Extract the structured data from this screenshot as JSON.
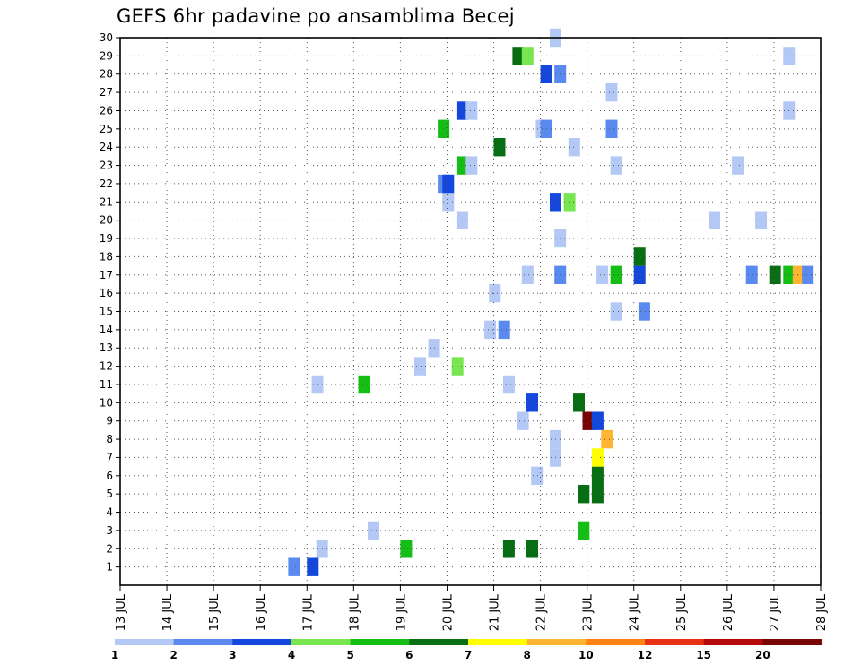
{
  "chart_data": {
    "type": "heatmap",
    "title": "GEFS 6hr padavine po ansamblima Becej",
    "x_tick_labels": [
      "13 JUL",
      "14 JUL",
      "15 JUL",
      "16 JUL",
      "17 JUL",
      "18 JUL",
      "19 JUL",
      "20 JUL",
      "21 JUL",
      "22 JUL",
      "23 JUL",
      "24 JUL",
      "25 JUL",
      "26 JUL",
      "27 JUL",
      "28 JUL"
    ],
    "x_range_days": [
      0,
      15
    ],
    "y_tick_labels": [
      "1",
      "2",
      "3",
      "4",
      "5",
      "6",
      "7",
      "8",
      "9",
      "10",
      "11",
      "12",
      "13",
      "14",
      "15",
      "16",
      "17",
      "18",
      "19",
      "20",
      "21",
      "22",
      "23",
      "24",
      "25",
      "26",
      "27",
      "28",
      "29",
      "30"
    ],
    "y_range": [
      0,
      30
    ],
    "grid": true,
    "colorbar": {
      "labels": [
        "1",
        "2",
        "3",
        "4",
        "5",
        "6",
        "7",
        "8",
        "10",
        "12",
        "15",
        "20"
      ],
      "colors": [
        "#b4c8f6",
        "#5a8af0",
        "#1448dc",
        "#78e650",
        "#14be14",
        "#086e14",
        "#ffff00",
        "#ffb432",
        "#ff8214",
        "#e63214",
        "#b40a0a",
        "#780505"
      ]
    },
    "colors": {
      "c1": "#b4c8f6",
      "c2": "#5a8af0",
      "c3": "#1448dc",
      "c4": "#78e650",
      "c5": "#14be14",
      "c6": "#086e14",
      "c7": "#ffff00",
      "c8": "#ffb432",
      "c9": "#ff8214",
      "c10": "#e63214",
      "c11": "#b40a0a",
      "c12": "#780505"
    },
    "cells": [
      [
        4,
        1,
        1
      ],
      [
        4,
        1,
        2
      ],
      [
        4,
        0,
        0
      ],
      [
        4,
        0,
        1
      ],
      [
        5,
        0,
        0
      ],
      [
        5,
        0,
        1
      ],
      [
        6,
        0,
        2
      ],
      [
        6,
        1,
        4
      ],
      [
        7,
        1,
        4
      ],
      [
        7,
        1,
        5
      ],
      [
        7,
        1,
        6
      ],
      [
        7,
        0,
        6
      ],
      [
        7,
        0,
        7
      ],
      [
        7,
        1,
        10
      ],
      [
        7,
        1,
        13
      ],
      [
        7,
        1,
        16
      ],
      [
        12,
        3,
        1
      ],
      [
        12,
        3,
        2
      ],
      [
        12,
        3,
        3
      ],
      [
        9,
        3,
        3
      ],
      [
        8,
        2,
        5
      ],
      [
        16,
        4,
        1
      ],
      [
        16,
        4,
        3
      ],
      [
        16,
        4,
        5
      ],
      [
        16,
        5,
        4
      ],
      [
        7,
        6,
        4
      ],
      [
        7,
        6,
        5
      ],
      [
        8,
        8,
        11
      ],
      [
        9,
        1,
        2
      ],
      [
        9,
        1,
        3
      ],
      [
        9,
        1,
        4
      ],
      [
        24,
        5,
        4
      ],
      [
        24,
        5,
        5
      ],
      [
        23,
        6,
        4
      ],
      [
        23,
        6,
        5
      ],
      [
        23,
        3,
        1
      ],
      [
        23,
        3,
        3
      ],
      [
        14,
        4,
        6
      ],
      [
        19,
        2,
        1
      ],
      [
        20,
        2,
        4
      ],
      [
        21,
        3,
        4
      ],
      [
        14,
        3,
        5
      ],
      [
        14,
        1,
        7
      ],
      [
        20,
        2,
        3
      ],
      [
        12,
        11,
        1
      ],
      [
        24,
        11,
        1
      ],
      [
        25,
        3,
        2
      ],
      [
        25,
        4,
        6
      ],
      [
        27,
        11,
        3
      ],
      [
        29,
        12,
        3
      ],
      [
        29,
        12,
        5
      ],
      [
        19,
        12,
        8
      ],
      [
        20,
        6,
        1
      ],
      [
        21,
        6,
        5
      ],
      [
        21,
        6,
        2
      ],
      [
        22,
        8,
        2
      ],
      [
        22,
        8,
        7
      ],
      [
        23,
        8,
        10
      ],
      [
        18,
        6,
        2
      ],
      [
        18,
        11,
        6
      ],
      [
        26,
        1,
        9
      ],
      [
        25,
        1,
        9
      ],
      [
        23,
        6,
        13
      ],
      [
        24,
        2,
        10
      ],
      [
        22,
        12,
        12
      ],
      [
        21,
        12,
        3
      ],
      [
        22,
        5,
        1
      ],
      [
        21,
        4,
        9
      ],
      [
        13,
        5,
        7
      ],
      [
        21,
        11,
        9
      ],
      [
        22,
        5,
        12
      ],
      [
        22,
        5,
        7
      ]
    ]
  }
}
